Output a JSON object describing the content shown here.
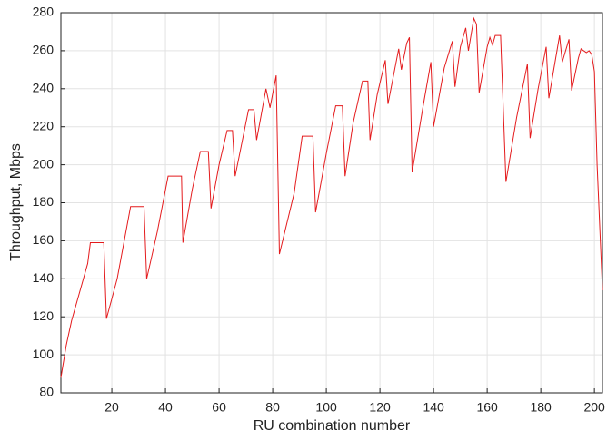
{
  "chart_data": {
    "type": "line",
    "x_label": "RU combination number",
    "y_label": "Throughput, Mbps",
    "x": [
      1,
      3,
      5,
      8,
      11,
      12,
      17,
      18,
      22,
      27,
      32,
      33,
      37,
      41,
      46,
      46.5,
      50,
      53,
      56,
      57,
      60,
      63,
      65,
      66,
      69,
      71,
      73,
      74,
      77.5,
      79,
      81.3,
      82.5,
      88,
      91,
      95,
      96,
      100,
      103.5,
      106,
      107,
      110,
      113.5,
      115.5,
      116.3,
      119,
      122,
      123,
      127,
      128,
      130,
      131,
      132,
      136,
      139,
      140,
      144,
      147,
      148,
      150,
      152,
      153,
      155,
      156,
      157,
      160,
      161,
      162,
      163,
      165,
      167,
      171,
      175,
      176,
      179,
      182,
      183,
      187,
      188,
      190.5,
      191.5,
      194,
      195,
      197,
      198,
      199,
      200,
      201,
      203
    ],
    "values": [
      88,
      105,
      118,
      133,
      148,
      159,
      159,
      119,
      140,
      178,
      178,
      140,
      165,
      194,
      194,
      159,
      187,
      207,
      207,
      177,
      200,
      218,
      218,
      194,
      215,
      229,
      229,
      213,
      240,
      230,
      247,
      153,
      185,
      215,
      215,
      175,
      206,
      231,
      231,
      194,
      222,
      244,
      244,
      213,
      237,
      255,
      232,
      261,
      250,
      264,
      267,
      196,
      230,
      254,
      220,
      251,
      265,
      241,
      262,
      272,
      260,
      277,
      274,
      238,
      262,
      267,
      263,
      268,
      268,
      191,
      225,
      253,
      214,
      240,
      262,
      235,
      268,
      254,
      266,
      239,
      256,
      261,
      259,
      260,
      258,
      249,
      200,
      134
    ],
    "color": "#e41a1c",
    "xlim": [
      1,
      203
    ],
    "xticks": [
      20,
      40,
      60,
      80,
      100,
      120,
      140,
      160,
      180,
      200
    ],
    "ylim": [
      80,
      280
    ],
    "yticks": [
      80,
      100,
      120,
      140,
      160,
      180,
      200,
      220,
      240,
      260,
      280
    ],
    "grid": true
  }
}
